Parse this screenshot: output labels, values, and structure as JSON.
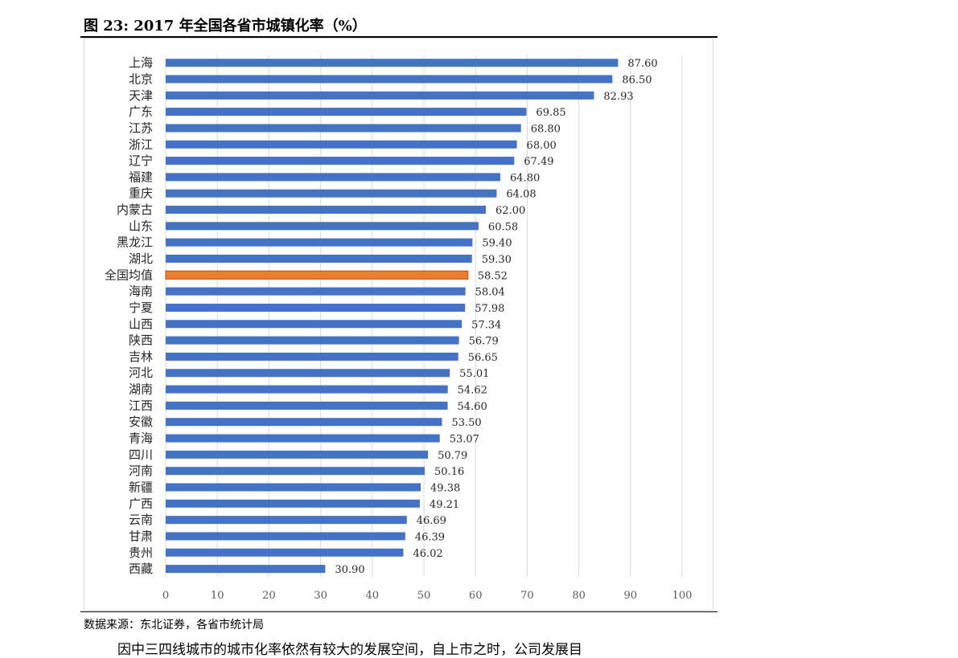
{
  "figure": {
    "title": "图 23: 2017 年全国各省市城镇化率（%）",
    "source": "数据来源：东北证券，各省市统计局",
    "body_text": "因中三四线城市的城市化率依然有较大的发展空间，自上市之时，公司发展目"
  },
  "colors": {
    "bar": "#4472C4",
    "highlight": "#ED7D31",
    "highlight_border": "#C55A11",
    "grid": "#D9D9D9"
  },
  "chart_data": {
    "type": "bar",
    "orientation": "horizontal",
    "title": "",
    "xlabel": "",
    "ylabel": "",
    "xlim": [
      0,
      100
    ],
    "xticks": [
      0,
      10,
      20,
      30,
      40,
      50,
      60,
      70,
      80,
      90,
      100
    ],
    "grid": "vertical",
    "legend": "none",
    "highlight_category": "全国均值",
    "categories": [
      "上海",
      "北京",
      "天津",
      "广东",
      "江苏",
      "浙江",
      "辽宁",
      "福建",
      "重庆",
      "内蒙古",
      "山东",
      "黑龙江",
      "湖北",
      "全国均值",
      "海南",
      "宁夏",
      "山西",
      "陕西",
      "吉林",
      "河北",
      "湖南",
      "江西",
      "安徽",
      "青海",
      "四川",
      "河南",
      "新疆",
      "广西",
      "云南",
      "甘肃",
      "贵州",
      "西藏"
    ],
    "values": [
      87.6,
      86.5,
      82.93,
      69.85,
      68.8,
      68.0,
      67.49,
      64.8,
      64.08,
      62.0,
      60.58,
      59.4,
      59.3,
      58.52,
      58.04,
      57.98,
      57.34,
      56.79,
      56.65,
      55.01,
      54.62,
      54.6,
      53.5,
      53.07,
      50.79,
      50.16,
      49.38,
      49.21,
      46.69,
      46.39,
      46.02,
      30.9
    ],
    "value_labels": [
      "87.60",
      "86.50",
      "82.93",
      "69.85",
      "68.80",
      "68.00",
      "67.49",
      "64.80",
      "64.08",
      "62.00",
      "60.58",
      "59.40",
      "59.30",
      "58.52",
      "58.04",
      "57.98",
      "57.34",
      "56.79",
      "56.65",
      "55.01",
      "54.62",
      "54.60",
      "53.50",
      "53.07",
      "50.79",
      "50.16",
      "49.38",
      "49.21",
      "46.69",
      "46.39",
      "46.02",
      "30.90"
    ]
  }
}
